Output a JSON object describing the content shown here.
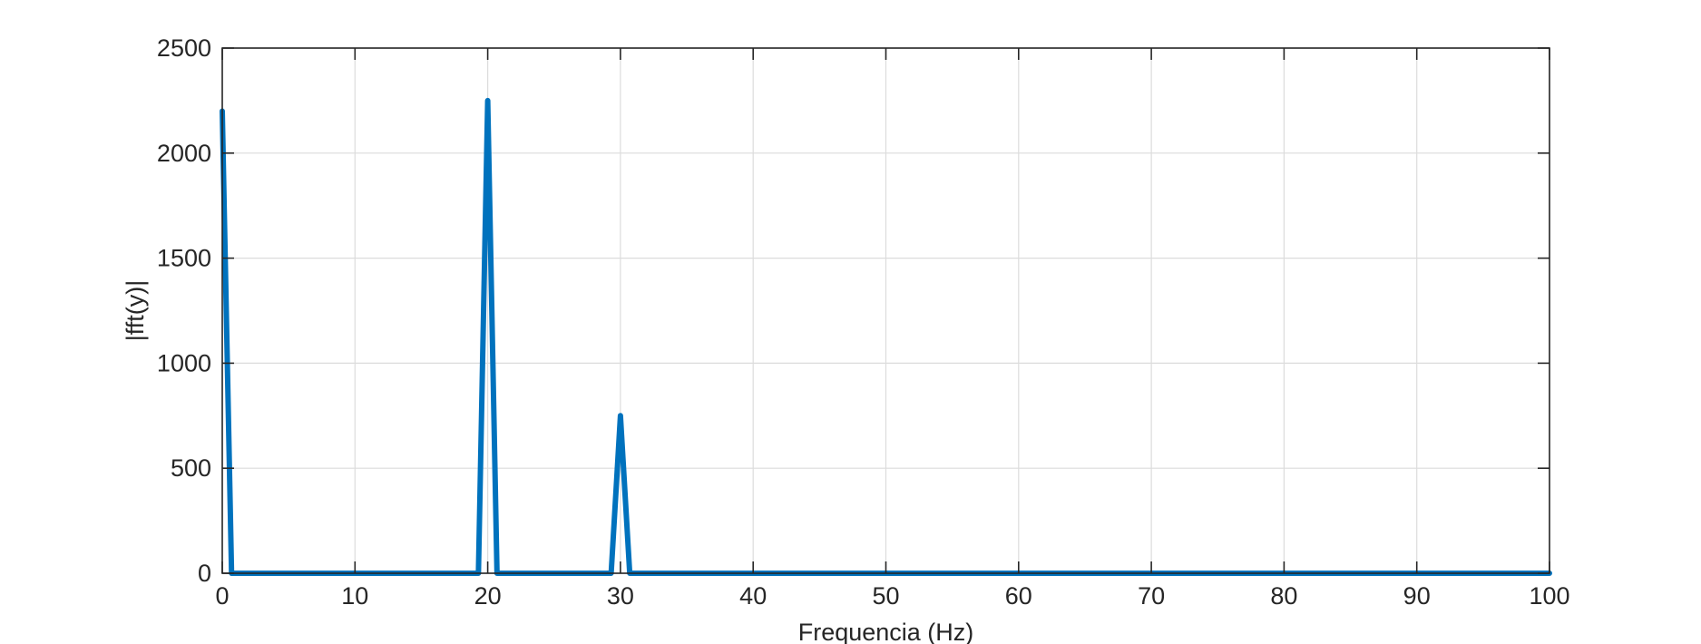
{
  "chart_data": {
    "type": "line",
    "title": "",
    "xlabel": "Frequencia (Hz)",
    "ylabel": "|fft(y)|",
    "xlim": [
      0,
      100
    ],
    "ylim": [
      0,
      2500
    ],
    "xticks": [
      0,
      10,
      20,
      30,
      40,
      50,
      60,
      70,
      80,
      90,
      100
    ],
    "yticks": [
      0,
      500,
      1000,
      1500,
      2000,
      2500
    ],
    "grid": true,
    "series_color": "#0072bd",
    "series": [
      {
        "x": [
          0,
          0.7,
          19.3,
          20,
          20.7,
          29.3,
          30,
          30.7,
          100
        ],
        "values": [
          2200,
          0,
          0,
          2250,
          0,
          0,
          750,
          0,
          0
        ]
      }
    ]
  }
}
